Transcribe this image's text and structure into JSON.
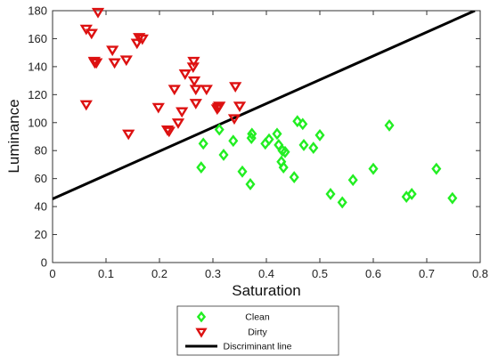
{
  "chart_data": {
    "type": "scatter",
    "xlabel": "Saturation",
    "ylabel": "Luminance",
    "xlim": [
      0,
      0.8
    ],
    "ylim": [
      0,
      180
    ],
    "xticks": [
      "0",
      "0.1",
      "0.2",
      "0.3",
      "0.4",
      "0.5",
      "0.6",
      "0.7",
      "0.8"
    ],
    "yticks": [
      "0",
      "20",
      "40",
      "60",
      "80",
      "100",
      "120",
      "140",
      "160",
      "180"
    ],
    "grid": false,
    "legend_position": "bottom-center",
    "series": [
      {
        "name": "Clean",
        "marker": "diamond",
        "color": "#22ee22",
        "points": [
          [
            0.278,
            68
          ],
          [
            0.282,
            85
          ],
          [
            0.312,
            95
          ],
          [
            0.32,
            77
          ],
          [
            0.338,
            87
          ],
          [
            0.355,
            65
          ],
          [
            0.37,
            56
          ],
          [
            0.372,
            89
          ],
          [
            0.373,
            92
          ],
          [
            0.398,
            85
          ],
          [
            0.405,
            88
          ],
          [
            0.42,
            92
          ],
          [
            0.423,
            84
          ],
          [
            0.428,
            72
          ],
          [
            0.432,
            68
          ],
          [
            0.43,
            80
          ],
          [
            0.435,
            79
          ],
          [
            0.452,
            61
          ],
          [
            0.458,
            101
          ],
          [
            0.468,
            99
          ],
          [
            0.47,
            84
          ],
          [
            0.488,
            82
          ],
          [
            0.5,
            91
          ],
          [
            0.52,
            49
          ],
          [
            0.542,
            43
          ],
          [
            0.562,
            59
          ],
          [
            0.6,
            67
          ],
          [
            0.63,
            98
          ],
          [
            0.662,
            47
          ],
          [
            0.672,
            49
          ],
          [
            0.718,
            67
          ],
          [
            0.748,
            46
          ]
        ]
      },
      {
        "name": "Dirty",
        "marker": "triangle-down",
        "color": "#dd1111",
        "points": [
          [
            0.063,
            167
          ],
          [
            0.063,
            113
          ],
          [
            0.073,
            164
          ],
          [
            0.078,
            144
          ],
          [
            0.079,
            143
          ],
          [
            0.082,
            143
          ],
          [
            0.085,
            179
          ],
          [
            0.112,
            152
          ],
          [
            0.116,
            143
          ],
          [
            0.138,
            145
          ],
          [
            0.142,
            92
          ],
          [
            0.158,
            157
          ],
          [
            0.162,
            161
          ],
          [
            0.168,
            160
          ],
          [
            0.198,
            111
          ],
          [
            0.215,
            95
          ],
          [
            0.218,
            94
          ],
          [
            0.228,
            124
          ],
          [
            0.235,
            100
          ],
          [
            0.242,
            108
          ],
          [
            0.248,
            135
          ],
          [
            0.263,
            140
          ],
          [
            0.264,
            144
          ],
          [
            0.265,
            130
          ],
          [
            0.268,
            124
          ],
          [
            0.268,
            114
          ],
          [
            0.288,
            124
          ],
          [
            0.308,
            110
          ],
          [
            0.31,
            111
          ],
          [
            0.312,
            112
          ],
          [
            0.34,
            103
          ],
          [
            0.342,
            126
          ],
          [
            0.35,
            112
          ]
        ]
      }
    ],
    "discriminant_line": {
      "name": "Discriminant line",
      "color": "#000000",
      "points": [
        [
          0,
          45.5
        ],
        [
          0.79,
          180
        ]
      ]
    }
  }
}
